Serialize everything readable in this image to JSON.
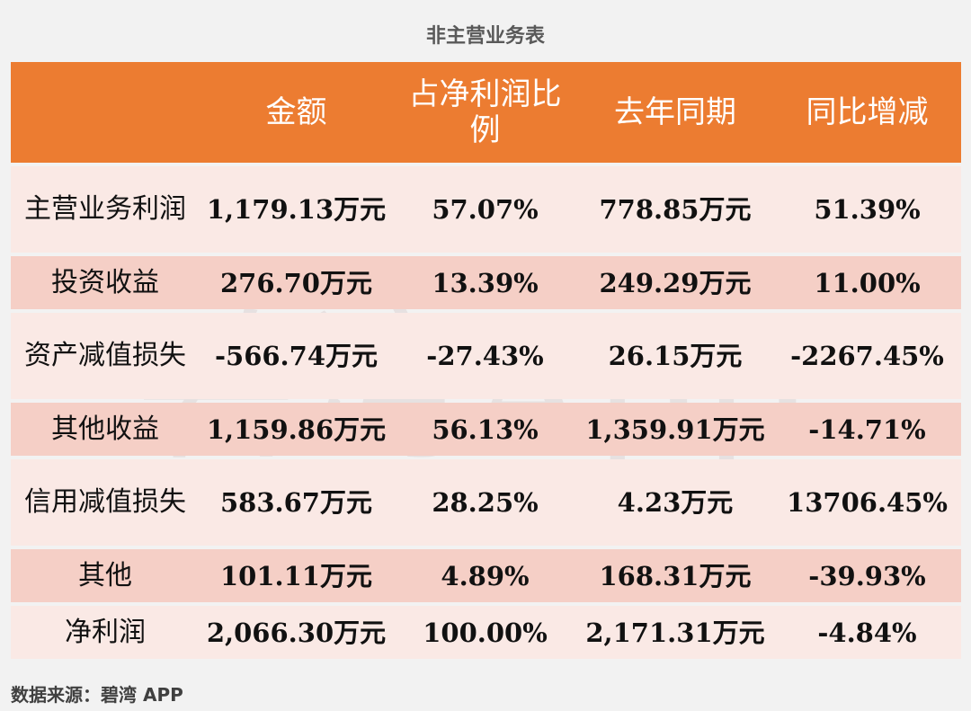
{
  "title": "非主营业务表",
  "chart_data": {
    "type": "table",
    "columns": [
      "",
      "金额",
      "占净利润比例",
      "去年同期",
      "同比增减"
    ],
    "rows": [
      {
        "label": "主营业务利润",
        "amount": "1,179.13万元",
        "share": "57.07%",
        "prior": "778.85万元",
        "yoy": "51.39%"
      },
      {
        "label": "投资收益",
        "amount": "276.70万元",
        "share": "13.39%",
        "prior": "249.29万元",
        "yoy": "11.00%"
      },
      {
        "label": "资产减值损失",
        "amount": "-566.74万元",
        "share": "-27.43%",
        "prior": "26.15万元",
        "yoy": "-2267.45%"
      },
      {
        "label": "其他收益",
        "amount": "1,159.86万元",
        "share": "56.13%",
        "prior": "1,359.91万元",
        "yoy": "-14.71%"
      },
      {
        "label": "信用减值损失",
        "amount": "583.67万元",
        "share": "28.25%",
        "prior": "4.23万元",
        "yoy": "13706.45%"
      },
      {
        "label": "其他",
        "amount": "101.11万元",
        "share": "4.89%",
        "prior": "168.31万元",
        "yoy": "-39.93%"
      },
      {
        "label": "净利润",
        "amount": "2,066.30万元",
        "share": "100.00%",
        "prior": "2,171.31万元",
        "yoy": "-4.84%"
      }
    ]
  },
  "watermark": "碧湾App",
  "source": "数据来源：碧湾 APP",
  "colors": {
    "header": "#ec7c31",
    "row_light": "#fae9e5",
    "row_dark": "#f5cfc6"
  }
}
